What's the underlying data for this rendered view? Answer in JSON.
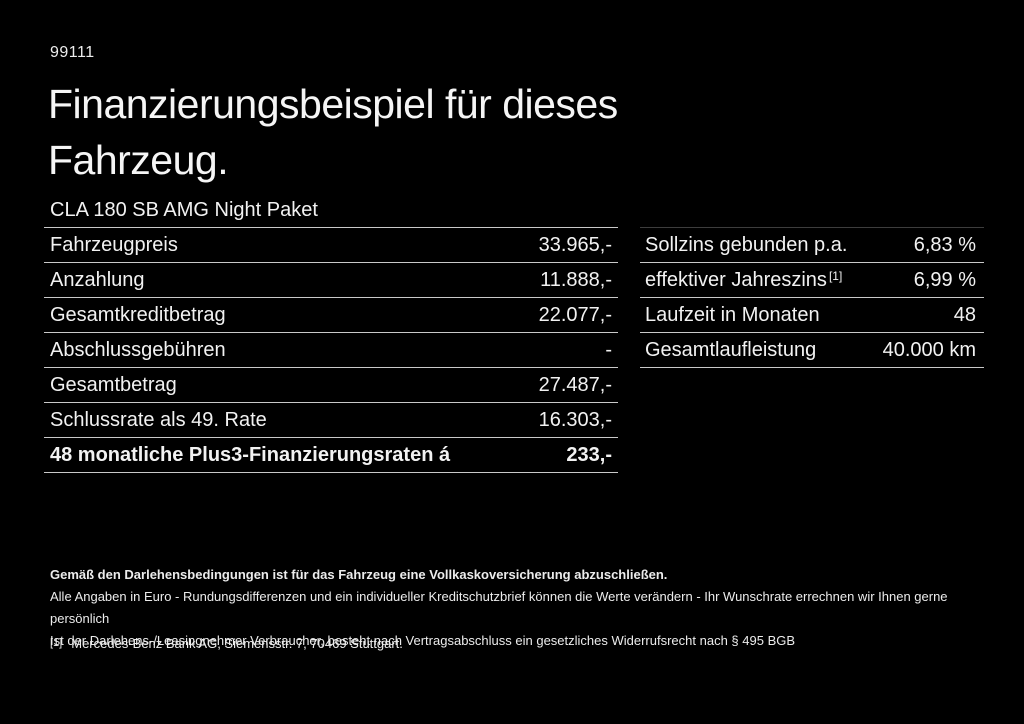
{
  "page": {
    "id_code": "99111",
    "title": "Finanzierungsbeispiel für dieses\nFahrzeug.",
    "subtitle": "CLA 180 SB AMG Night Paket"
  },
  "colors": {
    "background": "#000000",
    "text": "#f2f2f2",
    "divider": "#c9c9c9"
  },
  "finance_table": {
    "rows": [
      {
        "label": "Fahrzeugpreis",
        "value": "33.965,-"
      },
      {
        "label": "Anzahlung",
        "value": "11.888,-"
      },
      {
        "label": "Gesamtkreditbetrag",
        "value": "22.077,-"
      },
      {
        "label": "Abschlussgebühren",
        "value": "-"
      },
      {
        "label": "Gesamtbetrag",
        "value": "27.487,-"
      },
      {
        "label": "Schlussrate als 49. Rate",
        "value": "16.303,-"
      },
      {
        "label": "48 monatliche Plus3-Finanzierungsraten á",
        "value": "233,-"
      }
    ]
  },
  "conditions_table": {
    "rows": [
      {
        "label": "Sollzins gebunden p.a.",
        "sup": "",
        "value": "6,83 %"
      },
      {
        "label": "effektiver Jahreszins",
        "sup": "[1]",
        "value": "6,99 %"
      },
      {
        "label": "Laufzeit in Monaten",
        "sup": "",
        "value": "48"
      },
      {
        "label": "Gesamtlaufleistung",
        "sup": "",
        "value": "40.000 km"
      }
    ]
  },
  "footer": {
    "line1": "Gemäß den Darlehensbedingungen ist für das Fahrzeug eine Vollkaskoversicherung abzuschließen.",
    "line2": "Alle Angaben in Euro - Rundungsdifferenzen und ein individueller Kreditschutzbrief können die Werte verändern - Ihr Wunschrate errechnen wir Ihnen gerne persönlich",
    "line3": "Ist der Darlehens-/Leasingnehmer Verbraucher, besteht nach Vertragsabschluss ein gesetzliches Widerrufsrecht nach § 495 BGB",
    "footnote_marker": "[1]",
    "footnote_text": "Mercedes-Benz Bank AG, Siemensstr. 7, 70469 Stuttgart."
  }
}
